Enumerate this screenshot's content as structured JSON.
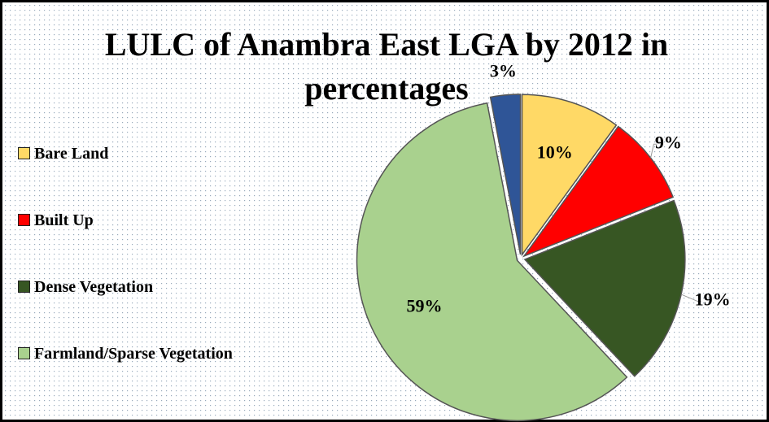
{
  "chart_data": {
    "type": "pie",
    "title": "LULC of Anambra East LGA by 2012 in percentages",
    "categories": [
      "Bare Land",
      "Built Up",
      "Dense Vegetation",
      "Farmland/Sparse Vegetation",
      null
    ],
    "values": [
      10,
      9,
      19,
      59,
      3
    ],
    "value_labels": [
      "10%",
      "9%",
      "19%",
      "59%",
      "3%"
    ],
    "colors": [
      "#ffd966",
      "#ff0000",
      "#375623",
      "#a9d18e",
      "#2f5597"
    ],
    "legend": "left"
  }
}
